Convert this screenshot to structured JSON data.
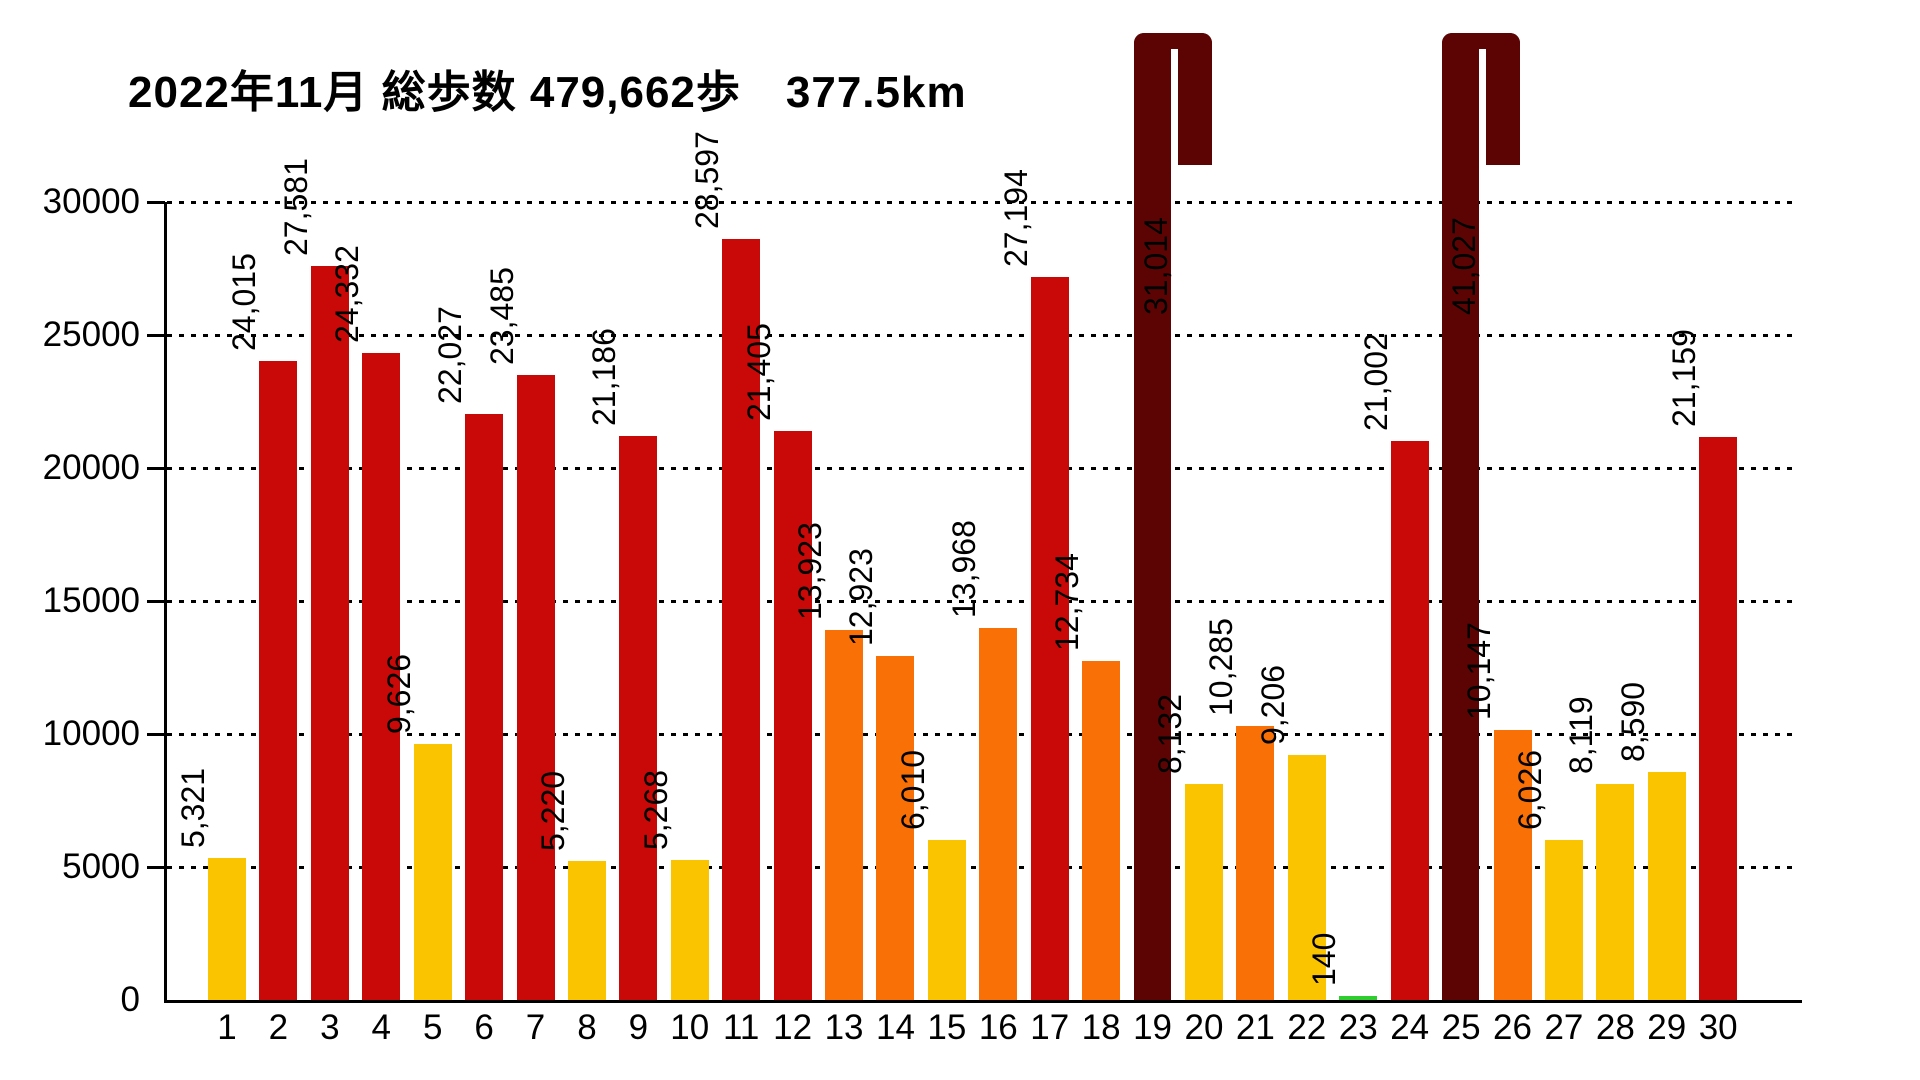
{
  "title": "2022年11月 総歩数 479,662歩　377.5km",
  "chart_data": {
    "type": "bar",
    "title": "2022年11月 総歩数 479,662歩　377.5km",
    "total_steps_label": "479,662歩",
    "total_distance_label": "377.5km",
    "xlabel": "",
    "ylabel": "",
    "categories": [
      1,
      2,
      3,
      4,
      5,
      6,
      7,
      8,
      9,
      10,
      11,
      12,
      13,
      14,
      15,
      16,
      17,
      18,
      19,
      20,
      21,
      22,
      23,
      24,
      25,
      26,
      27,
      28,
      29,
      30
    ],
    "values": [
      5321,
      24015,
      27581,
      24332,
      9626,
      22027,
      23485,
      5220,
      21186,
      5268,
      28597,
      21405,
      13923,
      12923,
      6010,
      13968,
      27194,
      12734,
      31014,
      8132,
      10285,
      9206,
      140,
      21002,
      41027,
      10147,
      6026,
      8119,
      8590,
      21159
    ],
    "ylim": [
      0,
      30000
    ],
    "y_ticks": [
      0,
      5000,
      10000,
      15000,
      20000,
      25000,
      30000
    ],
    "grid": "horizontal-dotted",
    "legend": "none",
    "value_labels": "rotated-90-above-bars, thousands separated by commas",
    "y_overflow": {
      "day": 25,
      "value": 41027,
      "style": "bar clipped at top with fold-over cap, label below cap"
    },
    "color_rules": [
      {
        "range": "0-4999",
        "color": "#2FCE2F"
      },
      {
        "range": "5000-9999",
        "color": "#FBC400"
      },
      {
        "range": "10000-19999",
        "color": "#F97006"
      },
      {
        "range": "20000-29999",
        "color": "#C90808"
      },
      {
        "range": "30000+",
        "color": "#5C0404"
      }
    ]
  },
  "colors": {
    "green": "#2FCE2F",
    "yellow": "#FBC400",
    "orange": "#F97006",
    "red": "#C90808",
    "dark_red": "#5C0404",
    "axis": "#000000",
    "text": "#000000",
    "background": "#FFFFFF"
  }
}
